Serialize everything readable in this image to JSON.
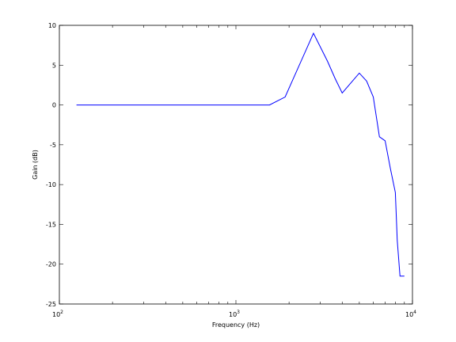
{
  "chart_data": {
    "type": "line",
    "title": "",
    "xlabel": "Frequency (Hz)",
    "ylabel": "Gain (dB)",
    "xscale": "log",
    "xlim": [
      100,
      10000
    ],
    "ylim": [
      -25,
      10
    ],
    "x_tick_labels": [
      {
        "value": 100,
        "base": "10",
        "exp": "2"
      },
      {
        "value": 1000,
        "base": "10",
        "exp": "3"
      },
      {
        "value": 10000,
        "base": "10",
        "exp": "4"
      }
    ],
    "y_ticks": [
      10,
      5,
      0,
      -5,
      -10,
      -15,
      -20,
      -25
    ],
    "grid": false,
    "legend": "none",
    "line_color": "#0000ff",
    "series": [
      {
        "x": [
          125,
          1550,
          1900,
          2750,
          3300,
          3650,
          4000,
          5000,
          5500,
          6000,
          6500,
          7000,
          7500,
          8000,
          8200,
          8500,
          9000
        ],
        "y": [
          0,
          0,
          1,
          9,
          5.5,
          3.3,
          1.5,
          4,
          3,
          1,
          -4,
          -4.5,
          -8,
          -11,
          -17,
          -21.5,
          -21.5
        ]
      }
    ]
  }
}
